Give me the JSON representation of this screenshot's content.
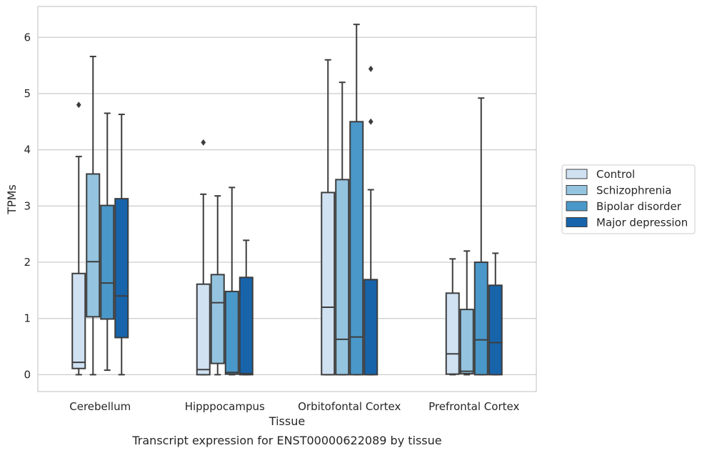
{
  "chart_data": {
    "type": "boxplot",
    "xlabel": "Tissue",
    "ylabel": "TPMs",
    "caption": "Transcript expression for ENST00000622089 by tissue",
    "ylim": [
      -0.3,
      6.55
    ],
    "yticks": [
      0,
      1,
      2,
      3,
      4,
      5,
      6
    ],
    "grid": true,
    "legend_position": "right",
    "categories": [
      "Cerebellum",
      "Hipppocampus",
      "Orbitofontal Cortex",
      "Prefrontal Cortex"
    ],
    "series": [
      {
        "name": "Control",
        "color": "#d0e1f2",
        "boxes": [
          {
            "whisker_low": 0.0,
            "q1": 0.11,
            "median": 0.22,
            "q3": 1.8,
            "whisker_high": 3.88,
            "outliers": [
              4.8
            ]
          },
          {
            "whisker_low": 0.0,
            "q1": 0.0,
            "median": 0.09,
            "q3": 1.61,
            "whisker_high": 3.21,
            "outliers": [
              4.13
            ]
          },
          {
            "whisker_low": 0.0,
            "q1": 0.0,
            "median": 1.2,
            "q3": 3.24,
            "whisker_high": 5.6,
            "outliers": []
          },
          {
            "whisker_low": 0.0,
            "q1": 0.01,
            "median": 0.37,
            "q3": 1.45,
            "whisker_high": 2.06,
            "outliers": []
          }
        ]
      },
      {
        "name": "Schizophrenia",
        "color": "#94c4df",
        "boxes": [
          {
            "whisker_low": 0.0,
            "q1": 1.03,
            "median": 2.01,
            "q3": 3.57,
            "whisker_high": 5.66,
            "outliers": []
          },
          {
            "whisker_low": 0.0,
            "q1": 0.2,
            "median": 1.28,
            "q3": 1.78,
            "whisker_high": 3.18,
            "outliers": []
          },
          {
            "whisker_low": 0.0,
            "q1": 0.0,
            "median": 0.63,
            "q3": 3.47,
            "whisker_high": 5.2,
            "outliers": []
          },
          {
            "whisker_low": 0.0,
            "q1": 0.02,
            "median": 0.06,
            "q3": 1.16,
            "whisker_high": 2.2,
            "outliers": []
          }
        ]
      },
      {
        "name": "Bipolar disorder",
        "color": "#4a98c9",
        "boxes": [
          {
            "whisker_low": 0.08,
            "q1": 0.99,
            "median": 1.63,
            "q3": 3.01,
            "whisker_high": 4.65,
            "outliers": []
          },
          {
            "whisker_low": 0.0,
            "q1": 0.01,
            "median": 0.04,
            "q3": 1.48,
            "whisker_high": 3.33,
            "outliers": []
          },
          {
            "whisker_low": 0.0,
            "q1": 0.0,
            "median": 0.67,
            "q3": 4.5,
            "whisker_high": 6.23,
            "outliers": []
          },
          {
            "whisker_low": 0.0,
            "q1": 0.0,
            "median": 0.62,
            "q3": 2.0,
            "whisker_high": 4.92,
            "outliers": []
          }
        ]
      },
      {
        "name": "Major depression",
        "color": "#1764ab",
        "boxes": [
          {
            "whisker_low": 0.0,
            "q1": 0.66,
            "median": 1.4,
            "q3": 3.13,
            "whisker_high": 4.63,
            "outliers": []
          },
          {
            "whisker_low": 0.0,
            "q1": 0.0,
            "median": 0.02,
            "q3": 1.73,
            "whisker_high": 2.39,
            "outliers": []
          },
          {
            "whisker_low": 0.0,
            "q1": 0.0,
            "median": 1.69,
            "q3": 1.69,
            "whisker_high": 3.29,
            "outliers": [
              4.5,
              5.44
            ]
          },
          {
            "whisker_low": 0.0,
            "q1": 0.0,
            "median": 0.57,
            "q3": 1.59,
            "whisker_high": 2.16,
            "outliers": []
          }
        ]
      }
    ]
  }
}
